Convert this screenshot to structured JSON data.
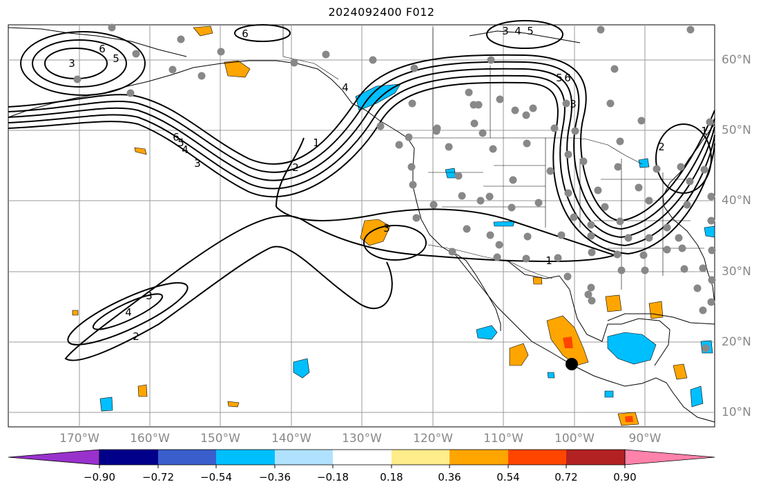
{
  "title": "2024092400 F012",
  "map": {
    "lon_labels": [
      "170°W",
      "160°W",
      "150°W",
      "140°W",
      "130°W",
      "120°W",
      "110°W",
      "100°W",
      "90°W"
    ],
    "lat_labels": [
      "60°N",
      "50°N",
      "40°N",
      "30°N",
      "20°N",
      "10°N"
    ],
    "contour_labels": [
      "3",
      "6",
      "5",
      "3",
      "4",
      "5",
      "6",
      "2",
      "1",
      "3",
      "4",
      "5",
      "6",
      "1",
      "2",
      "1",
      "3",
      "4",
      "3",
      "2",
      "6",
      "3",
      "5",
      "4"
    ],
    "station_color": "#888888",
    "marker_color": "#000000"
  },
  "colorbar": {
    "ticks": [
      "−0.90",
      "−0.72",
      "−0.54",
      "−0.36",
      "−0.18",
      "0.18",
      "0.36",
      "0.54",
      "0.72",
      "0.90"
    ],
    "colors": [
      "#9932cc",
      "#00008b",
      "#3a5fcd",
      "#00bfff",
      "#b0e2ff",
      "#ffffff",
      "#ffec8b",
      "#ffa500",
      "#ff4500",
      "#b22222",
      "#ff82ab"
    ]
  }
}
